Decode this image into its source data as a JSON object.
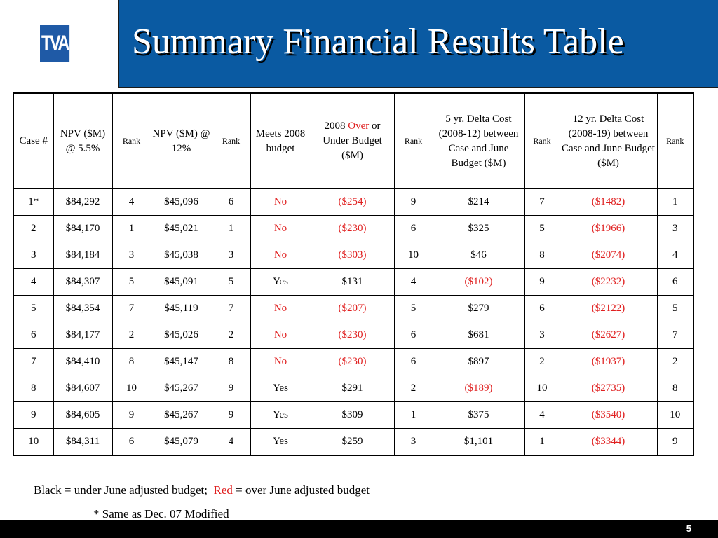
{
  "logo": {
    "text": "TVA"
  },
  "title": "Summary Financial Results Table",
  "headers": [
    "Case #",
    "NPV ($M) @ 5.5%",
    "Rank",
    "NPV ($M) @ 12%",
    "Rank",
    "Meets 2008 budget",
    "2008 Over or Under Budget ($M)",
    "Rank",
    "5 yr. Delta Cost (2008-12) between Case and June Budget ($M)",
    "Rank",
    "12 yr. Delta Cost (2008-19) between Case and June Budget ($M)",
    "Rank"
  ],
  "header_parts": {
    "budget_2008_pre": "2008 ",
    "budget_2008_over": "Over",
    "budget_2008_post": " or Under Budget ($M)"
  },
  "rows": [
    [
      "1*",
      "$84,292",
      "4",
      "$45,096",
      "6",
      "No",
      "($254)",
      "9",
      "$214",
      "7",
      "($1482)",
      "1"
    ],
    [
      "2",
      "$84,170",
      "1",
      "$45,021",
      "1",
      "No",
      "($230)",
      "6",
      "$325",
      "5",
      "($1966)",
      "3"
    ],
    [
      "3",
      "$84,184",
      "3",
      "$45,038",
      "3",
      "No",
      "($303)",
      "10",
      "$46",
      "8",
      "($2074)",
      "4"
    ],
    [
      "4",
      "$84,307",
      "5",
      "$45,091",
      "5",
      "Yes",
      "$131",
      "4",
      "($102)",
      "9",
      "($2232)",
      "6"
    ],
    [
      "5",
      "$84,354",
      "7",
      "$45,119",
      "7",
      "No",
      "($207)",
      "5",
      "$279",
      "6",
      "($2122)",
      "5"
    ],
    [
      "6",
      "$84,177",
      "2",
      "$45,026",
      "2",
      "No",
      "($230)",
      "6",
      "$681",
      "3",
      "($2627)",
      "7"
    ],
    [
      "7",
      "$84,410",
      "8",
      "$45,147",
      "8",
      "No",
      "($230)",
      "6",
      "$897",
      "2",
      "($1937)",
      "2"
    ],
    [
      "8",
      "$84,607",
      "10",
      "$45,267",
      "9",
      "Yes",
      "$291",
      "2",
      "($189)",
      "10",
      "($2735)",
      "8"
    ],
    [
      "9",
      "$84,605",
      "9",
      "$45,267",
      "9",
      "Yes",
      "$309",
      "1",
      "$375",
      "4",
      "($3540)",
      "10"
    ],
    [
      "10",
      "$84,311",
      "6",
      "$45,079",
      "4",
      "Yes",
      "$259",
      "3",
      "$1,101",
      "1",
      "($3344)",
      "9"
    ]
  ],
  "red_cells": [
    [
      0,
      5
    ],
    [
      0,
      6
    ],
    [
      0,
      10
    ],
    [
      1,
      5
    ],
    [
      1,
      6
    ],
    [
      1,
      10
    ],
    [
      2,
      5
    ],
    [
      2,
      6
    ],
    [
      2,
      10
    ],
    [
      3,
      8
    ],
    [
      3,
      10
    ],
    [
      4,
      5
    ],
    [
      4,
      6
    ],
    [
      4,
      10
    ],
    [
      5,
      5
    ],
    [
      5,
      6
    ],
    [
      5,
      10
    ],
    [
      6,
      5
    ],
    [
      6,
      6
    ],
    [
      6,
      10
    ],
    [
      7,
      8
    ],
    [
      7,
      10
    ],
    [
      8,
      10
    ],
    [
      9,
      10
    ]
  ],
  "legend": {
    "black_text": "Black = under June adjusted budget;",
    "red_word": "Red",
    "red_text": " = over June adjusted budget"
  },
  "footnote": "* Same as Dec. 07 Modified",
  "page_number": "5",
  "colors": {
    "title_bar": "#0a5aa2",
    "logo": "#1f5aa6",
    "red": "#e02020",
    "footer": "#000000"
  }
}
